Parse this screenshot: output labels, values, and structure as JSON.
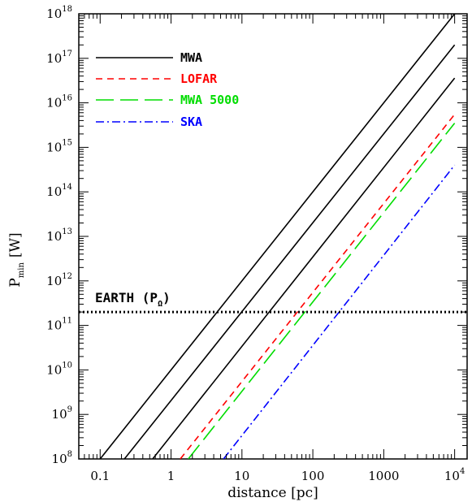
{
  "chart_data": {
    "type": "line",
    "xlabel": "distance [pc]",
    "ylabel_main": "P",
    "ylabel_sub": "min",
    "ylabel_unit": "[W]",
    "x_scale": "log",
    "y_scale": "log",
    "xlim": [
      0.05,
      15000
    ],
    "ylim": [
      100000000.0,
      1e+18
    ],
    "x_ticks": [
      {
        "value": 0.1,
        "label": "0.1"
      },
      {
        "value": 1,
        "label": "1"
      },
      {
        "value": 10,
        "label": "10"
      },
      {
        "value": 100,
        "label": "100"
      },
      {
        "value": 1000,
        "label": "1000"
      },
      {
        "value": 10000,
        "label": "10",
        "sup": "4"
      }
    ],
    "y_ticks": [
      {
        "value": 100000000.0,
        "base": "10",
        "sup": "8"
      },
      {
        "value": 1000000000.0,
        "base": "10",
        "sup": "9"
      },
      {
        "value": 10000000000.0,
        "base": "10",
        "sup": "10"
      },
      {
        "value": 100000000000.0,
        "base": "10",
        "sup": "11"
      },
      {
        "value": 1000000000000.0,
        "base": "10",
        "sup": "12"
      },
      {
        "value": 10000000000000.0,
        "base": "10",
        "sup": "13"
      },
      {
        "value": 100000000000000.0,
        "base": "10",
        "sup": "14"
      },
      {
        "value": 1000000000000000.0,
        "base": "10",
        "sup": "15"
      },
      {
        "value": 1e+16,
        "base": "10",
        "sup": "16"
      },
      {
        "value": 1e+17,
        "base": "10",
        "sup": "17"
      },
      {
        "value": 1e+18,
        "base": "10",
        "sup": "18"
      }
    ],
    "series": [
      {
        "name": "MWA",
        "color": "#000000",
        "dash": "solid",
        "x": [
          0.1,
          10000
        ],
        "y": [
          100000000.0,
          1e+18
        ]
      },
      {
        "name": "",
        "color": "#000000",
        "dash": "solid",
        "x": [
          0.22,
          10000
        ],
        "y": [
          100000000.0,
          2e+17
        ]
      },
      {
        "name": "",
        "color": "#000000",
        "dash": "solid",
        "x": [
          0.55,
          10000
        ],
        "y": [
          100000000.0,
          3.6e+16
        ]
      },
      {
        "name": "LOFAR",
        "color": "#ff0000",
        "dash": "short",
        "x": [
          1.35,
          10000
        ],
        "y": [
          100000000.0,
          5500000000000000.0
        ]
      },
      {
        "name": "MWA 5000",
        "color": "#00dd00",
        "dash": "long",
        "x": [
          1.75,
          10000
        ],
        "y": [
          100000000.0,
          3500000000000000.0
        ]
      },
      {
        "name": "SKA",
        "color": "#0000ff",
        "dash": "dashdot",
        "x": [
          5.5,
          10000
        ],
        "y": [
          100000000.0,
          400000000000000.0
        ]
      }
    ],
    "legend": {
      "placement": "top-left",
      "entries": [
        {
          "label": "MWA",
          "color": "#000000",
          "dash": "solid"
        },
        {
          "label": "LOFAR",
          "color": "#ff0000",
          "dash": "short"
        },
        {
          "label": "MWA 5000",
          "color": "#00dd00",
          "dash": "long"
        },
        {
          "label": "SKA",
          "color": "#0000ff",
          "dash": "dashdot"
        }
      ]
    },
    "reference_line": {
      "label": "EARTH (P",
      "label_sub": "Ω",
      "label_end": ")",
      "y": 200000000000.0,
      "style": "dotted",
      "color": "#000000"
    }
  }
}
